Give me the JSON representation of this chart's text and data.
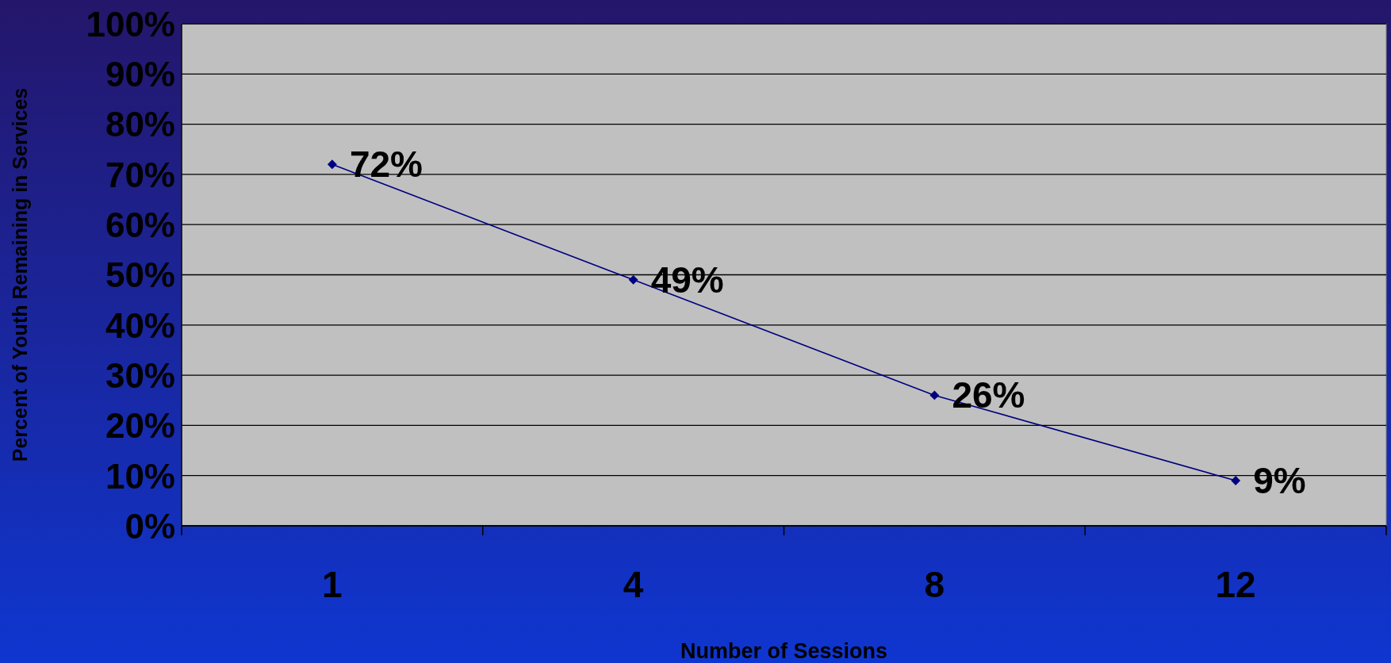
{
  "chart_data": {
    "type": "line",
    "xlabel": "Number of Sessions",
    "ylabel": "Percent of Youth Remaining in Services",
    "categories": [
      "1",
      "4",
      "8",
      "12"
    ],
    "series": [
      {
        "color": "#000080",
        "values": [
          72,
          49,
          26,
          9
        ],
        "value_labels": [
          "72%",
          "49%",
          "26%",
          "9%"
        ]
      }
    ],
    "ylim": [
      0,
      100
    ],
    "yticks": [
      {
        "value": 0,
        "label": "0%"
      },
      {
        "value": 10,
        "label": "10%"
      },
      {
        "value": 20,
        "label": "20%"
      },
      {
        "value": 30,
        "label": "30%"
      },
      {
        "value": 40,
        "label": "40%"
      },
      {
        "value": 50,
        "label": "50%"
      },
      {
        "value": 60,
        "label": "60%"
      },
      {
        "value": 70,
        "label": "70%"
      },
      {
        "value": 80,
        "label": "80%"
      },
      {
        "value": 90,
        "label": "90%"
      },
      {
        "value": 100,
        "label": "100%"
      }
    ],
    "grid": "y",
    "marker": "diamond",
    "line_style": "solid"
  }
}
